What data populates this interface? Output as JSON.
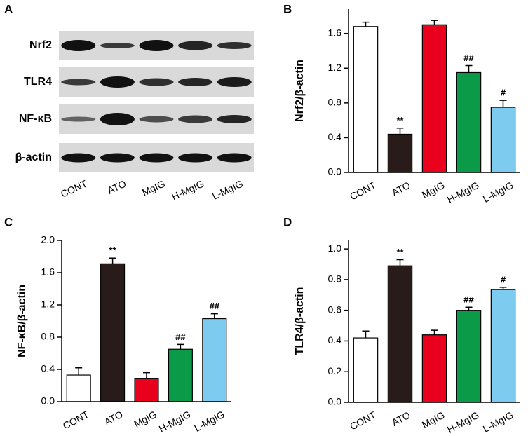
{
  "panel_a": {
    "label": "A",
    "rows": [
      "Nrf2",
      "TLR4",
      "NF-κB",
      "β-actin"
    ],
    "lanes": [
      "CONT",
      "ATO",
      "MgIG",
      "H-MgIG",
      "L-MgIG"
    ]
  },
  "chart_data": [
    {
      "type": "bar",
      "panel": "B",
      "y_label": "Nrf2/β-actin",
      "categories": [
        "CONT",
        "ATO",
        "MgIG",
        "H-MgIG",
        "L-MgIG"
      ],
      "values": [
        1.68,
        0.44,
        1.7,
        1.15,
        0.75
      ],
      "errors": [
        0.05,
        0.07,
        0.05,
        0.08,
        0.08
      ],
      "annotations": [
        null,
        "**",
        null,
        "##",
        "#"
      ],
      "colors": [
        "#ffffff",
        "#2a1b1b",
        "#e8001c",
        "#0a9a48",
        "#7ecbf0"
      ],
      "ylim": [
        0,
        1.88
      ],
      "yticks": [
        {
          "value": 0,
          "label": "0.0"
        },
        0.4,
        0.8,
        1.2,
        1.6
      ]
    },
    {
      "type": "bar",
      "panel": "C",
      "y_label": "NF-κB/β-actin",
      "categories": [
        "CONT",
        "ATO",
        "MgIG",
        "H-MgIG",
        "L-MgIG"
      ],
      "values": [
        0.33,
        1.71,
        0.29,
        0.65,
        1.03
      ],
      "errors": [
        0.09,
        0.07,
        0.07,
        0.06,
        0.06
      ],
      "annotations": [
        null,
        "**",
        null,
        "##",
        "##"
      ],
      "colors": [
        "#ffffff",
        "#2a1b1b",
        "#e8001c",
        "#0a9a48",
        "#7ecbf0"
      ],
      "ylim": [
        0,
        2.0
      ],
      "yticks": [
        {
          "value": 0,
          "label": "0.0"
        },
        0.4,
        0.8,
        1.2,
        1.6,
        {
          "value": 2,
          "label": "2.0"
        }
      ]
    },
    {
      "type": "bar",
      "panel": "D",
      "y_label": "TLR4/β-actin",
      "categories": [
        "CONT",
        "ATO",
        "MgIG",
        "H-MgIG",
        "L-MgIG"
      ],
      "values": [
        0.42,
        0.89,
        0.44,
        0.6,
        0.735
      ],
      "errors": [
        0.045,
        0.04,
        0.03,
        0.02,
        0.015
      ],
      "annotations": [
        null,
        "**",
        null,
        "##",
        "#"
      ],
      "colors": [
        "#ffffff",
        "#2a1b1b",
        "#e8001c",
        "#0a9a48",
        "#7ecbf0"
      ],
      "ylim": [
        0,
        1.06
      ],
      "yticks": [
        {
          "value": 0,
          "label": "0.0"
        },
        0.2,
        0.4,
        0.6,
        0.8,
        {
          "value": 1,
          "label": "1.0"
        }
      ]
    }
  ]
}
